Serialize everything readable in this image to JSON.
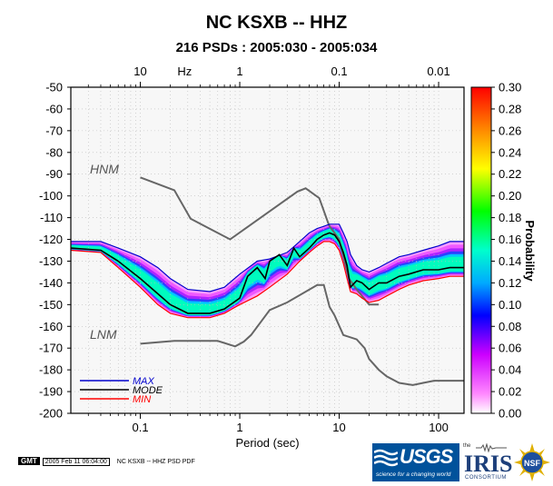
{
  "header": {
    "title": "NC KSXB -- HHZ",
    "subtitle": "216 PSDs : 2005:030 - 2005:034"
  },
  "chart_data": {
    "type": "heatmap",
    "title": "NC KSXB -- HHZ",
    "subtitle": "216 PSDs : 2005:030 - 2005:034",
    "xlabel": "Period (sec)",
    "x_scale": "log",
    "xlim": [
      0.02,
      180
    ],
    "x_ticks": [
      0.1,
      1,
      10,
      100
    ],
    "x_tick_labels": [
      "0.1",
      "1",
      "10",
      "100"
    ],
    "top_axis_label": "Hz",
    "top_ticks": [
      10,
      1,
      0.1,
      0.01
    ],
    "top_tick_labels": [
      "10",
      "1",
      "0.1",
      "0.01"
    ],
    "ylim": [
      -200,
      -50
    ],
    "y_ticks": [
      -50,
      -60,
      -70,
      -80,
      -90,
      -100,
      -110,
      -120,
      -130,
      -140,
      -150,
      -160,
      -170,
      -180,
      -190,
      -200
    ],
    "y_tick_labels": [
      "-50",
      "-60",
      "-70",
      "-80",
      "-90",
      "-100",
      "-110",
      "-120",
      "-130",
      "-140",
      "-150",
      "-160",
      "-170",
      "-180",
      "-190",
      "-200"
    ],
    "colorbar": {
      "label": "Probability",
      "range": [
        0.0,
        0.3
      ],
      "ticks": [
        0.0,
        0.02,
        0.04,
        0.06,
        0.08,
        0.1,
        0.12,
        0.14,
        0.16,
        0.18,
        0.2,
        0.22,
        0.24,
        0.26,
        0.28,
        0.3
      ],
      "tick_labels": [
        "0.00",
        "0.02",
        "0.04",
        "0.06",
        "0.08",
        "0.10",
        "0.12",
        "0.14",
        "0.16",
        "0.18",
        "0.20",
        "0.22",
        "0.24",
        "0.26",
        "0.28",
        "0.30"
      ]
    },
    "series": [
      {
        "name": "MAX",
        "color": "#0000cc",
        "x": [
          0.02,
          0.04,
          0.06,
          0.1,
          0.15,
          0.2,
          0.3,
          0.5,
          0.7,
          1,
          1.5,
          2,
          3,
          4,
          5,
          6,
          7,
          8,
          9,
          10,
          11,
          12,
          13,
          15,
          17,
          20,
          25,
          30,
          40,
          50,
          70,
          100,
          130,
          180
        ],
        "y": [
          -121,
          -121,
          -124,
          -128,
          -133,
          -138,
          -143,
          -144,
          -142,
          -136,
          -130,
          -129,
          -126,
          -121,
          -117,
          -115,
          -114,
          -113,
          -113,
          -113,
          -117,
          -121,
          -127,
          -132,
          -134,
          -135,
          -133,
          -131,
          -128,
          -127,
          -125,
          -123,
          -121,
          -121
        ]
      },
      {
        "name": "MODE",
        "color": "#000000",
        "x": [
          0.02,
          0.04,
          0.06,
          0.1,
          0.15,
          0.2,
          0.3,
          0.5,
          0.7,
          1,
          1.2,
          1.5,
          1.8,
          2,
          2.5,
          3,
          3.5,
          4,
          5,
          6,
          7,
          8,
          9,
          10,
          11,
          12,
          13,
          15,
          17,
          20,
          25,
          30,
          40,
          50,
          70,
          100,
          130,
          180
        ],
        "y": [
          -124,
          -125,
          -130,
          -138,
          -145,
          -150,
          -154,
          -154,
          -152,
          -147,
          -137,
          -133,
          -138,
          -130,
          -127,
          -132,
          -124,
          -128,
          -124,
          -120,
          -118,
          -117,
          -118,
          -121,
          -126,
          -132,
          -142,
          -139,
          -140,
          -143,
          -140,
          -140,
          -137,
          -136,
          -134,
          -134,
          -133,
          -133
        ]
      },
      {
        "name": "MIN",
        "color": "#ff0000",
        "x": [
          0.02,
          0.04,
          0.06,
          0.1,
          0.15,
          0.2,
          0.3,
          0.5,
          0.7,
          1,
          1.5,
          2,
          3,
          4,
          5,
          6,
          7,
          8,
          9,
          10,
          11,
          12,
          13,
          15,
          17,
          20,
          25,
          30,
          40,
          50,
          70,
          100,
          130,
          180
        ],
        "y": [
          -125,
          -126,
          -133,
          -142,
          -150,
          -154,
          -156,
          -156,
          -154,
          -150,
          -146,
          -142,
          -136,
          -130,
          -126,
          -123,
          -121,
          -121,
          -122,
          -125,
          -131,
          -138,
          -144,
          -145,
          -147,
          -149,
          -148,
          -146,
          -143,
          -141,
          -139,
          -138,
          -137,
          -137
        ]
      }
    ],
    "models": [
      {
        "name": "HNM",
        "color": "#666666",
        "x": [
          0.1,
          0.22,
          0.32,
          0.8,
          3.8,
          4.6,
          6.3,
          7.9,
          10,
          12.5,
          15,
          20,
          25
        ],
        "y": [
          -91.5,
          -97.4,
          -110.5,
          -120,
          -98,
          -96.5,
          -101,
          -113.5,
          -120,
          -138,
          -143,
          -150,
          -150
        ]
      },
      {
        "name": "LNM",
        "color": "#666666",
        "x": [
          0.1,
          0.22,
          0.6,
          0.9,
          1.1,
          1.3,
          2,
          3,
          6,
          7,
          8,
          9,
          11,
          15,
          18,
          20,
          25,
          30,
          40,
          55,
          70,
          90,
          180
        ],
        "y": [
          -168,
          -166.7,
          -166.7,
          -169.2,
          -167,
          -164,
          -152.5,
          -149,
          -141,
          -141,
          -151,
          -155,
          -164,
          -166,
          -170,
          -175,
          -180,
          -183,
          -186,
          -187,
          -186,
          -185,
          -185
        ]
      }
    ],
    "legend": {
      "placement": "bottom-left",
      "entries": [
        "MAX",
        "MODE",
        "MIN"
      ]
    }
  },
  "footer": {
    "gmt_logo": "GMT",
    "gmt_timestamp": "2005 Feb 11 06:04:00",
    "gmt_caption": "NC KSXB -- HHZ PSD PDF",
    "usgs_logo": "USGS",
    "usgs_tagline": "science for a changing world",
    "iris_prefix": "the",
    "iris_logo": "IRIS",
    "iris_consortium": "CONSORTIUM",
    "nsf_logo": "NSF"
  }
}
